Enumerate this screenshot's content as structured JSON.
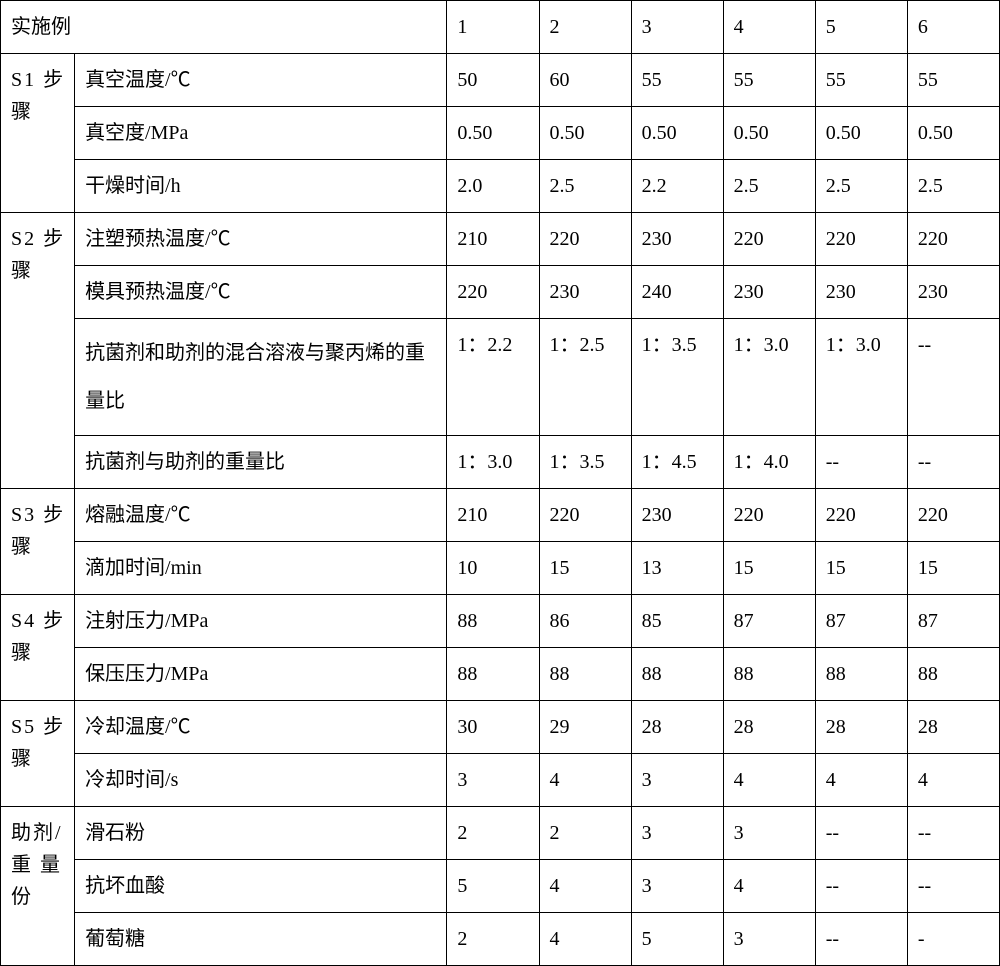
{
  "header": {
    "label_group": "实施例",
    "cols": [
      "1",
      "2",
      "3",
      "4",
      "5",
      "6"
    ]
  },
  "sections": [
    {
      "group": "S1 步骤",
      "rows": [
        {
          "param": "真空温度/℃",
          "vals": [
            "50",
            "60",
            "55",
            "55",
            "55",
            "55"
          ]
        },
        {
          "param": "真空度/MPa",
          "vals": [
            "0.50",
            "0.50",
            "0.50",
            "0.50",
            "0.50",
            "0.50"
          ]
        },
        {
          "param": "干燥时间/h",
          "vals": [
            "2.0",
            "2.5",
            "2.2",
            "2.5",
            "2.5",
            "2.5"
          ]
        }
      ]
    },
    {
      "group": "S2 步骤",
      "rows": [
        {
          "param": "注塑预热温度/℃",
          "vals": [
            "210",
            "220",
            "230",
            "220",
            "220",
            "220"
          ]
        },
        {
          "param": "模具预热温度/℃",
          "vals": [
            "220",
            "230",
            "240",
            "230",
            "230",
            "230"
          ]
        },
        {
          "param": "抗菌剂和助剂的混合溶液与聚丙烯的重量比",
          "tall": true,
          "vals": [
            "1：2.2",
            "1：2.5",
            "1：3.5",
            "1：3.0",
            "1：3.0",
            "--"
          ]
        },
        {
          "param": "抗菌剂与助剂的重量比",
          "vals": [
            "1：3.0",
            "1：3.5",
            "1：4.5",
            "1：4.0",
            "--",
            "--"
          ]
        }
      ]
    },
    {
      "group": "S3 步骤",
      "rows": [
        {
          "param": "熔融温度/℃",
          "vals": [
            "210",
            "220",
            "230",
            "220",
            "220",
            "220"
          ]
        },
        {
          "param": "滴加时间/min",
          "vals": [
            "10",
            "15",
            "13",
            "15",
            "15",
            "15"
          ]
        }
      ]
    },
    {
      "group": "S4 步骤",
      "rows": [
        {
          "param": "注射压力/MPa",
          "vals": [
            "88",
            "86",
            "85",
            "87",
            "87",
            "87"
          ]
        },
        {
          "param": "保压压力/MPa",
          "vals": [
            "88",
            "88",
            "88",
            "88",
            "88",
            "88"
          ]
        }
      ]
    },
    {
      "group": "S5 步骤",
      "rows": [
        {
          "param": "冷却温度/℃",
          "vals": [
            "30",
            "29",
            "28",
            "28",
            "28",
            "28"
          ]
        },
        {
          "param": "冷却时间/s",
          "vals": [
            "3",
            "4",
            "3",
            "4",
            "4",
            "4"
          ]
        }
      ]
    },
    {
      "group": "助剂/重 量份",
      "rows": [
        {
          "param": "滑石粉",
          "vals": [
            "2",
            "2",
            "3",
            "3",
            "--",
            "--"
          ]
        },
        {
          "param": "抗坏血酸",
          "vals": [
            "5",
            "4",
            "3",
            "4",
            "--",
            "--"
          ]
        },
        {
          "param": "葡萄糖",
          "vals": [
            "2",
            "4",
            "5",
            "3",
            "--",
            "-"
          ]
        }
      ]
    }
  ]
}
